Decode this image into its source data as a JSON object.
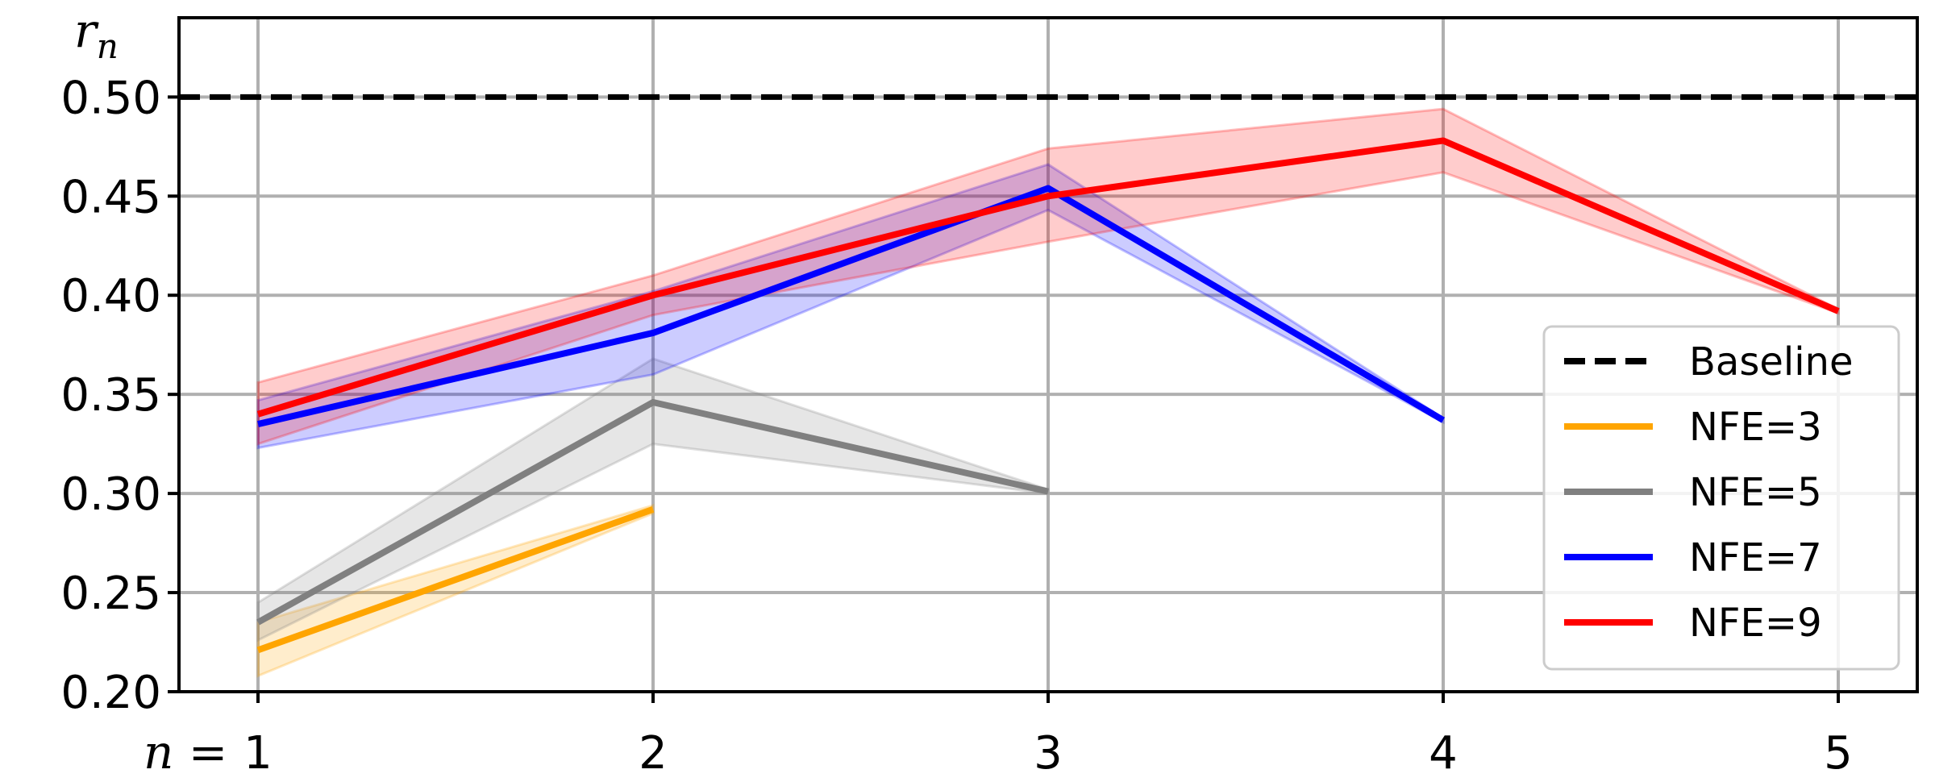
{
  "chart_data": {
    "type": "line",
    "xlabel": "n =",
    "ylabel": "r",
    "ylabel_sub": "n",
    "x_ticks": [
      1,
      2,
      3,
      4,
      5
    ],
    "x_tick_labels": [
      "1",
      "2",
      "3",
      "4",
      "5"
    ],
    "y_ticks": [
      0.2,
      0.25,
      0.3,
      0.35,
      0.4,
      0.45,
      0.5
    ],
    "y_tick_labels": [
      "0.20",
      "0.25",
      "0.30",
      "0.35",
      "0.40",
      "0.45",
      "0.50"
    ],
    "xlim": [
      0.8,
      5.2
    ],
    "ylim": [
      0.2,
      0.54
    ],
    "grid": true,
    "legend_position": "lower-right",
    "baseline": {
      "name": "Baseline",
      "value": 0.5,
      "color": "#000000",
      "style": "dashed"
    },
    "series": [
      {
        "name": "NFE=3",
        "color": "#ffa500",
        "x": [
          1,
          2
        ],
        "values": [
          0.221,
          0.292
        ],
        "lower": [
          0.208,
          0.29
        ],
        "upper": [
          0.235,
          0.294
        ]
      },
      {
        "name": "NFE=5",
        "color": "#808080",
        "x": [
          1,
          2,
          3
        ],
        "values": [
          0.235,
          0.346,
          0.301
        ],
        "lower": [
          0.226,
          0.325,
          0.3
        ],
        "upper": [
          0.245,
          0.368,
          0.302
        ]
      },
      {
        "name": "NFE=7",
        "color": "#0000ff",
        "x": [
          1,
          2,
          3,
          4
        ],
        "values": [
          0.335,
          0.381,
          0.454,
          0.337
        ],
        "lower": [
          0.323,
          0.36,
          0.443,
          0.336
        ],
        "upper": [
          0.347,
          0.402,
          0.466,
          0.338
        ]
      },
      {
        "name": "NFE=9",
        "color": "#ff0000",
        "x": [
          1,
          2,
          3,
          4,
          5
        ],
        "values": [
          0.34,
          0.4,
          0.45,
          0.478,
          0.392
        ],
        "lower": [
          0.325,
          0.39,
          0.427,
          0.462,
          0.391
        ],
        "upper": [
          0.356,
          0.41,
          0.474,
          0.494,
          0.393
        ]
      }
    ]
  }
}
